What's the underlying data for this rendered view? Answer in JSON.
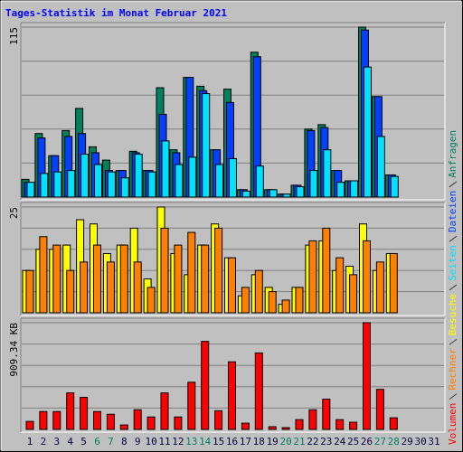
{
  "chart_data": [
    {
      "type": "bar",
      "title": "Tages-Statistik im Monat Februar 2021",
      "ylim": [
        0,
        115
      ],
      "yticks": [
        {
          "value": 23,
          "label": null
        },
        {
          "value": 46,
          "label": null
        },
        {
          "value": 69,
          "label": null
        },
        {
          "value": 92,
          "label": null
        },
        115
      ],
      "series": [
        {
          "name": "Anfragen",
          "color": "#00805c",
          "values": [
            12,
            43,
            28,
            45,
            60,
            34,
            25,
            18,
            31,
            18,
            74,
            32,
            81,
            75,
            32,
            73,
            5,
            98,
            5,
            2,
            8,
            46,
            49,
            18,
            11,
            115,
            68,
            15,
            0,
            0,
            0
          ]
        },
        {
          "name": "Dateien",
          "color": "#0040ff",
          "values": [
            10,
            40,
            28,
            41,
            43,
            30,
            18,
            18,
            30,
            18,
            56,
            30,
            81,
            72,
            32,
            64,
            5,
            95,
            5,
            2,
            8,
            45,
            47,
            18,
            11,
            113,
            68,
            15,
            0,
            0,
            0
          ]
        },
        {
          "name": "Seiten",
          "color": "#00e0ff",
          "values": [
            10,
            16,
            17,
            18,
            29,
            22,
            17,
            13,
            29,
            17,
            38,
            22,
            27,
            70,
            22,
            26,
            4,
            21,
            5,
            2,
            7,
            18,
            32,
            10,
            11,
            88,
            41,
            14,
            0,
            0,
            0
          ]
        }
      ]
    },
    {
      "type": "bar",
      "ylim": [
        0,
        25
      ],
      "yticks": [
        {
          "value": 5,
          "label": null
        },
        {
          "value": 10,
          "label": null
        },
        {
          "value": 15,
          "label": null
        },
        {
          "value": 20,
          "label": null
        },
        25
      ],
      "series": [
        {
          "name": "Besuche",
          "color": "#ffff00",
          "values": [
            10,
            15,
            15,
            16,
            22,
            21,
            14,
            16,
            20,
            8,
            25,
            14,
            9,
            16,
            21,
            13,
            4,
            9,
            6,
            2,
            6,
            16,
            17,
            10,
            11,
            21,
            10,
            14,
            0,
            0,
            0
          ]
        },
        {
          "name": "Rechner",
          "color": "#ff8000",
          "values": [
            10,
            18,
            16,
            10,
            12,
            16,
            12,
            16,
            12,
            6,
            20,
            16,
            19,
            16,
            20,
            13,
            6,
            10,
            5,
            3,
            6,
            17,
            20,
            13,
            9,
            17,
            12,
            14,
            0,
            0,
            0
          ]
        }
      ]
    },
    {
      "type": "bar",
      "ylim": [
        0,
        909.34
      ],
      "yticks": [
        {
          "value": 181.868,
          "label": null
        },
        {
          "value": 363.736,
          "label": null
        },
        {
          "value": 545.604,
          "label": null
        },
        {
          "value": 727.472,
          "label": null
        },
        {
          "value": 909.34,
          "label": "909.34 KB"
        }
      ],
      "categories": [
        "1",
        "2",
        "3",
        "4",
        "5",
        "6",
        "7",
        "8",
        "9",
        "10",
        "11",
        "12",
        "13",
        "14",
        "15",
        "16",
        "17",
        "18",
        "19",
        "20",
        "21",
        "22",
        "23",
        "24",
        "25",
        "26",
        "27",
        "28",
        "29",
        "30",
        "31"
      ],
      "weekend": [
        5,
        6,
        12,
        13,
        19,
        20,
        26,
        27
      ],
      "weekend_color": "#008060",
      "label_color": "#000040",
      "series": [
        {
          "name": "Volumen",
          "color": "#ff0000",
          "values": [
            68,
            152,
            152,
            311,
            273,
            152,
            129,
            38,
            167,
            106,
            311,
            106,
            402,
            750,
            159,
            576,
            53,
            652,
            23,
            15,
            83,
            167,
            258,
            83,
            61,
            909.34,
            341,
            99,
            0,
            0,
            0
          ]
        }
      ]
    }
  ]
}
